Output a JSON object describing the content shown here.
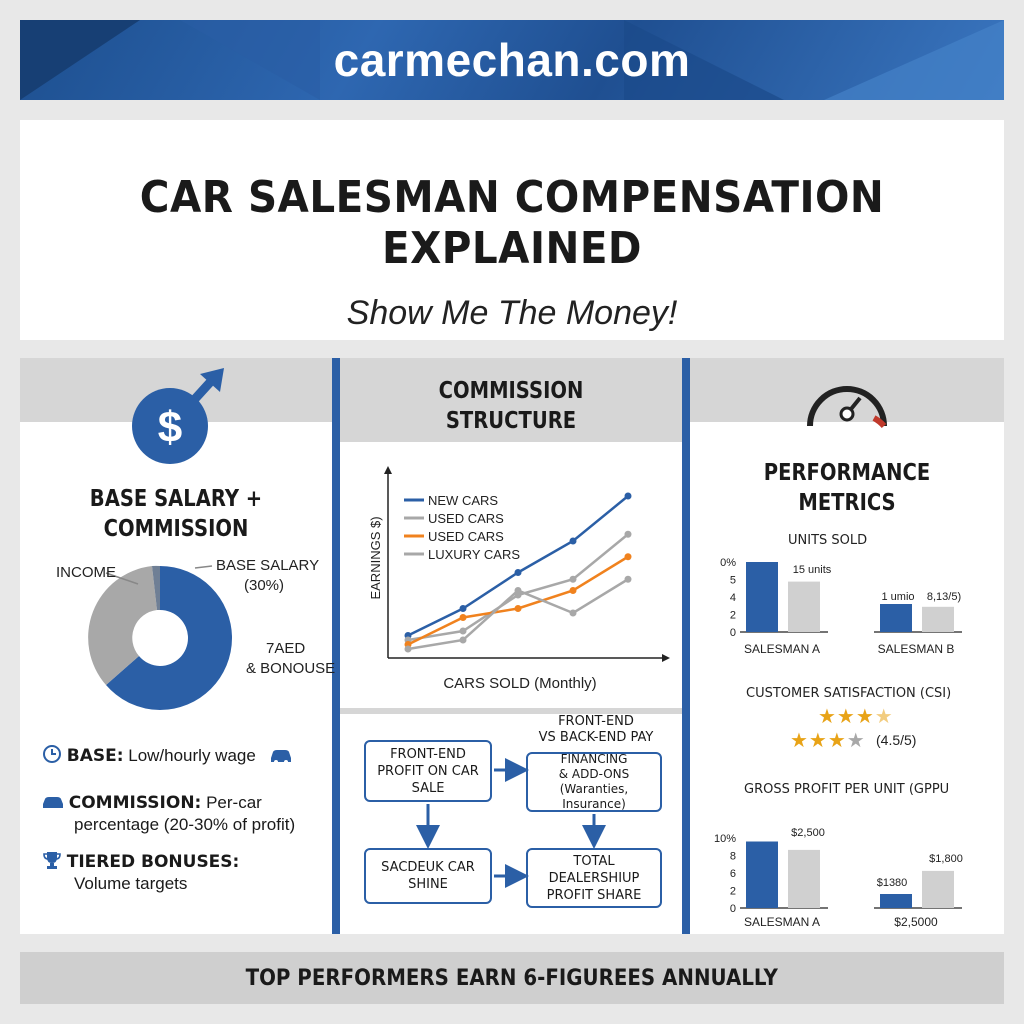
{
  "site": "carmechan.com",
  "title": "CAR SALESMAN COMPENSATION EXPLAINED",
  "subtitle": "Show Me The Money!",
  "left": {
    "heading_line1": "BASE SALARY +",
    "heading_line2": "COMMISSION",
    "donut_label_income": "INCOME",
    "donut_label_base": "BASE SALARY",
    "donut_label_base_pct": "(30%)",
    "donut_label_other1": "7AED",
    "donut_label_other2": "& BONOUSE",
    "bullets": [
      {
        "label": "BASE:",
        "text": " Low/hourly wage"
      },
      {
        "label": "COMMISSION:",
        "text": " Per-car",
        "text2": "percentage (20-30% of profit)"
      },
      {
        "label": "TIERED BONUSES:",
        "text2": "Volume targets"
      }
    ]
  },
  "middle": {
    "heading_line1": "COMMISSION",
    "heading_line2": "STRUCTURE",
    "ylabel": "EARNINGS $)",
    "xlabel": "CARS SOLD (Monthly)",
    "legend": [
      "NEW CARS",
      "USED CARS",
      "USED CARS",
      "LUXURY CARS"
    ],
    "flow": {
      "box1": [
        "FRONT-END",
        "PROFIT ON CAR SALE"
      ],
      "top_note": [
        "FRONT-END",
        "VS BACK-END PAY"
      ],
      "box2": [
        "FINANCING",
        "& ADD-ONS",
        "(Waranties, Insurance)"
      ],
      "box3": "SACDEUK CAR SHINE",
      "box4": [
        "TOTAL DEALERSHIUP",
        "PROFIT SHARE"
      ]
    }
  },
  "right": {
    "heading_line1": "PERFORMANCE",
    "heading_line2": "METRICS",
    "units_title": "UNITS SOLD",
    "units_ticks": [
      "0%",
      "5",
      "4",
      "2",
      "0"
    ],
    "units_note_a": "15 units",
    "units_note_b1": "1 umio",
    "units_note_b2": "8,13/5)",
    "salesman_a": "SALESMAN A",
    "salesman_b": "SALESMAN B",
    "csi_title": "CUSTOMER SATISFACTION (CSI)",
    "csi_rating": "(4.5/5)",
    "gppu_title": "GROSS PROFIT PER UNIT (GPPU",
    "gppu_ticks": [
      "10%",
      "8",
      "6",
      "2",
      "0"
    ],
    "gppu_a_val": "$2,500",
    "gppu_b_val1": "$1380",
    "gppu_b_val2": "$1,800",
    "gppu_b_label": "$2,5000"
  },
  "footer": "TOP PERFORMERS EARN 6-FIGUREES ANNUALLY",
  "colors": {
    "blue": "#2b5fa6",
    "orange": "#f0821e",
    "grey": "#a8a8a8",
    "gold": "#e8a317"
  },
  "chart_data": [
    {
      "type": "line",
      "x": [
        1,
        2,
        3,
        4,
        5
      ],
      "series": [
        {
          "name": "NEW CARS",
          "values": [
            10,
            22,
            38,
            52,
            72
          ]
        },
        {
          "name": "USED CARS",
          "values": [
            8,
            12,
            28,
            35,
            55
          ]
        },
        {
          "name": "USED CARS",
          "values": [
            6,
            18,
            22,
            30,
            45
          ]
        },
        {
          "name": "LUXURY CARS",
          "values": [
            4,
            8,
            30,
            20,
            35
          ]
        }
      ],
      "ylabel": "EARNINGS $)",
      "xlabel": "CARS SOLD (Monthly)"
    },
    {
      "type": "pie",
      "slices": [
        {
          "label": "BASE SALARY",
          "value": 30
        },
        {
          "label": "INCOME",
          "value": 70
        }
      ]
    },
    {
      "type": "bar",
      "title": "UNITS SOLD",
      "categories": [
        "SALESMAN A",
        "SALESMAN B"
      ],
      "series": [
        {
          "values": [
            5,
            2
          ]
        },
        {
          "values": [
            3.6,
            1.8
          ]
        }
      ]
    },
    {
      "type": "bar",
      "title": "GROSS PROFIT PER UNIT (GPPU",
      "categories": [
        "SALESMAN A",
        "SALESMAN B"
      ],
      "series": [
        {
          "values": [
            9.5,
            2
          ]
        },
        {
          "values": [
            8.3,
            5.3
          ]
        }
      ]
    }
  ]
}
